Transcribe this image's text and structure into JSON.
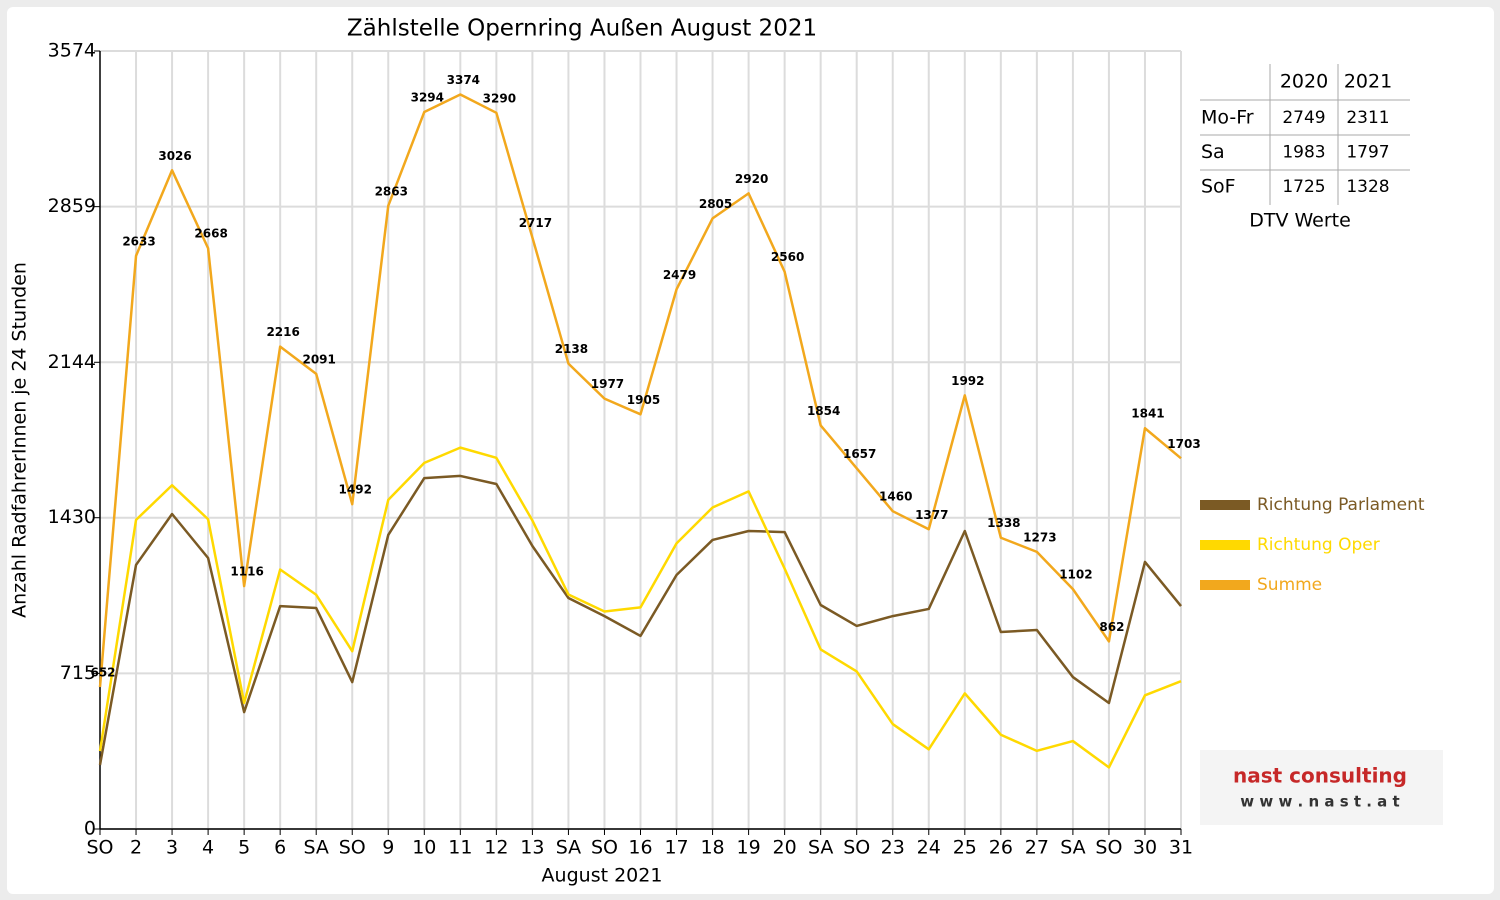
{
  "chart_data": {
    "type": "line",
    "title": "Zählstelle Opernring Außen August 2021",
    "x_label": "August 2021",
    "y_label": "Anzahl RadfahrerInnen je 24 Stunden",
    "categories": [
      "SO",
      "2",
      "3",
      "4",
      "5",
      "6",
      "SA",
      "SO",
      "9",
      "10",
      "11",
      "12",
      "13",
      "SA",
      "SO",
      "16",
      "17",
      "18",
      "19",
      "20",
      "SA",
      "SO",
      "23",
      "24",
      "25",
      "26",
      "27",
      "SA",
      "SO",
      "30",
      "31"
    ],
    "category_colors": [
      "#e00000",
      "#000",
      "#000",
      "#000",
      "#000",
      "#000",
      "#000",
      "#e00000",
      "#000",
      "#000",
      "#000",
      "#000",
      "#000",
      "#000",
      "#e00000",
      "#000",
      "#000",
      "#000",
      "#000",
      "#000",
      "#000",
      "#e00000",
      "#000",
      "#000",
      "#000",
      "#000",
      "#000",
      "#000",
      "#e00000",
      "#000",
      "#000"
    ],
    "series": [
      {
        "name": "Richtung Parlament",
        "color": "#7b5a24",
        "values": [
          294,
          1213,
          1447,
          1245,
          537,
          1024,
          1015,
          675,
          1351,
          1612,
          1622,
          1585,
          1300,
          1061,
          978,
          887,
          1167,
          1328,
          1369,
          1364,
          1029,
          933,
          978,
          1011,
          1369,
          905,
          914,
          698,
          579,
          1227,
          1024
        ]
      },
      {
        "name": "Richtung Oper",
        "color": "#ffd900",
        "values": [
          358,
          1420,
          1579,
          1423,
          579,
          1192,
          1076,
          817,
          1512,
          1682,
          1752,
          1705,
          1417,
          1077,
          999,
          1018,
          1312,
          1477,
          1551,
          1196,
          825,
          724,
          482,
          366,
          623,
          433,
          359,
          404,
          283,
          614,
          679
        ]
      },
      {
        "name": "Summe",
        "color": "#f2a81d",
        "data_labels": true,
        "values": [
          652,
          2633,
          3026,
          2668,
          1116,
          2216,
          2091,
          1492,
          2863,
          3294,
          3374,
          3290,
          2717,
          2138,
          1977,
          1905,
          2479,
          2805,
          2920,
          2560,
          1854,
          1657,
          1460,
          1377,
          1992,
          1338,
          1273,
          1102,
          862,
          1841,
          1703
        ]
      }
    ],
    "ylim": [
      0,
      3574
    ],
    "yticks": [
      0,
      715,
      1430,
      2144,
      2859,
      3574
    ],
    "grid": true,
    "legend": "right"
  },
  "dtv_table": {
    "columns": [
      "2020",
      "2021"
    ],
    "rows": [
      {
        "label": "Mo-Fr",
        "values": [
          2749,
          2311
        ]
      },
      {
        "label": "Sa",
        "values": [
          1983,
          1797
        ]
      },
      {
        "label": "SoF",
        "values": [
          1725,
          1328
        ]
      }
    ],
    "caption": "DTV Werte"
  },
  "logo": {
    "name": "nast consulting",
    "url": "w w w . n a s t . a t"
  }
}
